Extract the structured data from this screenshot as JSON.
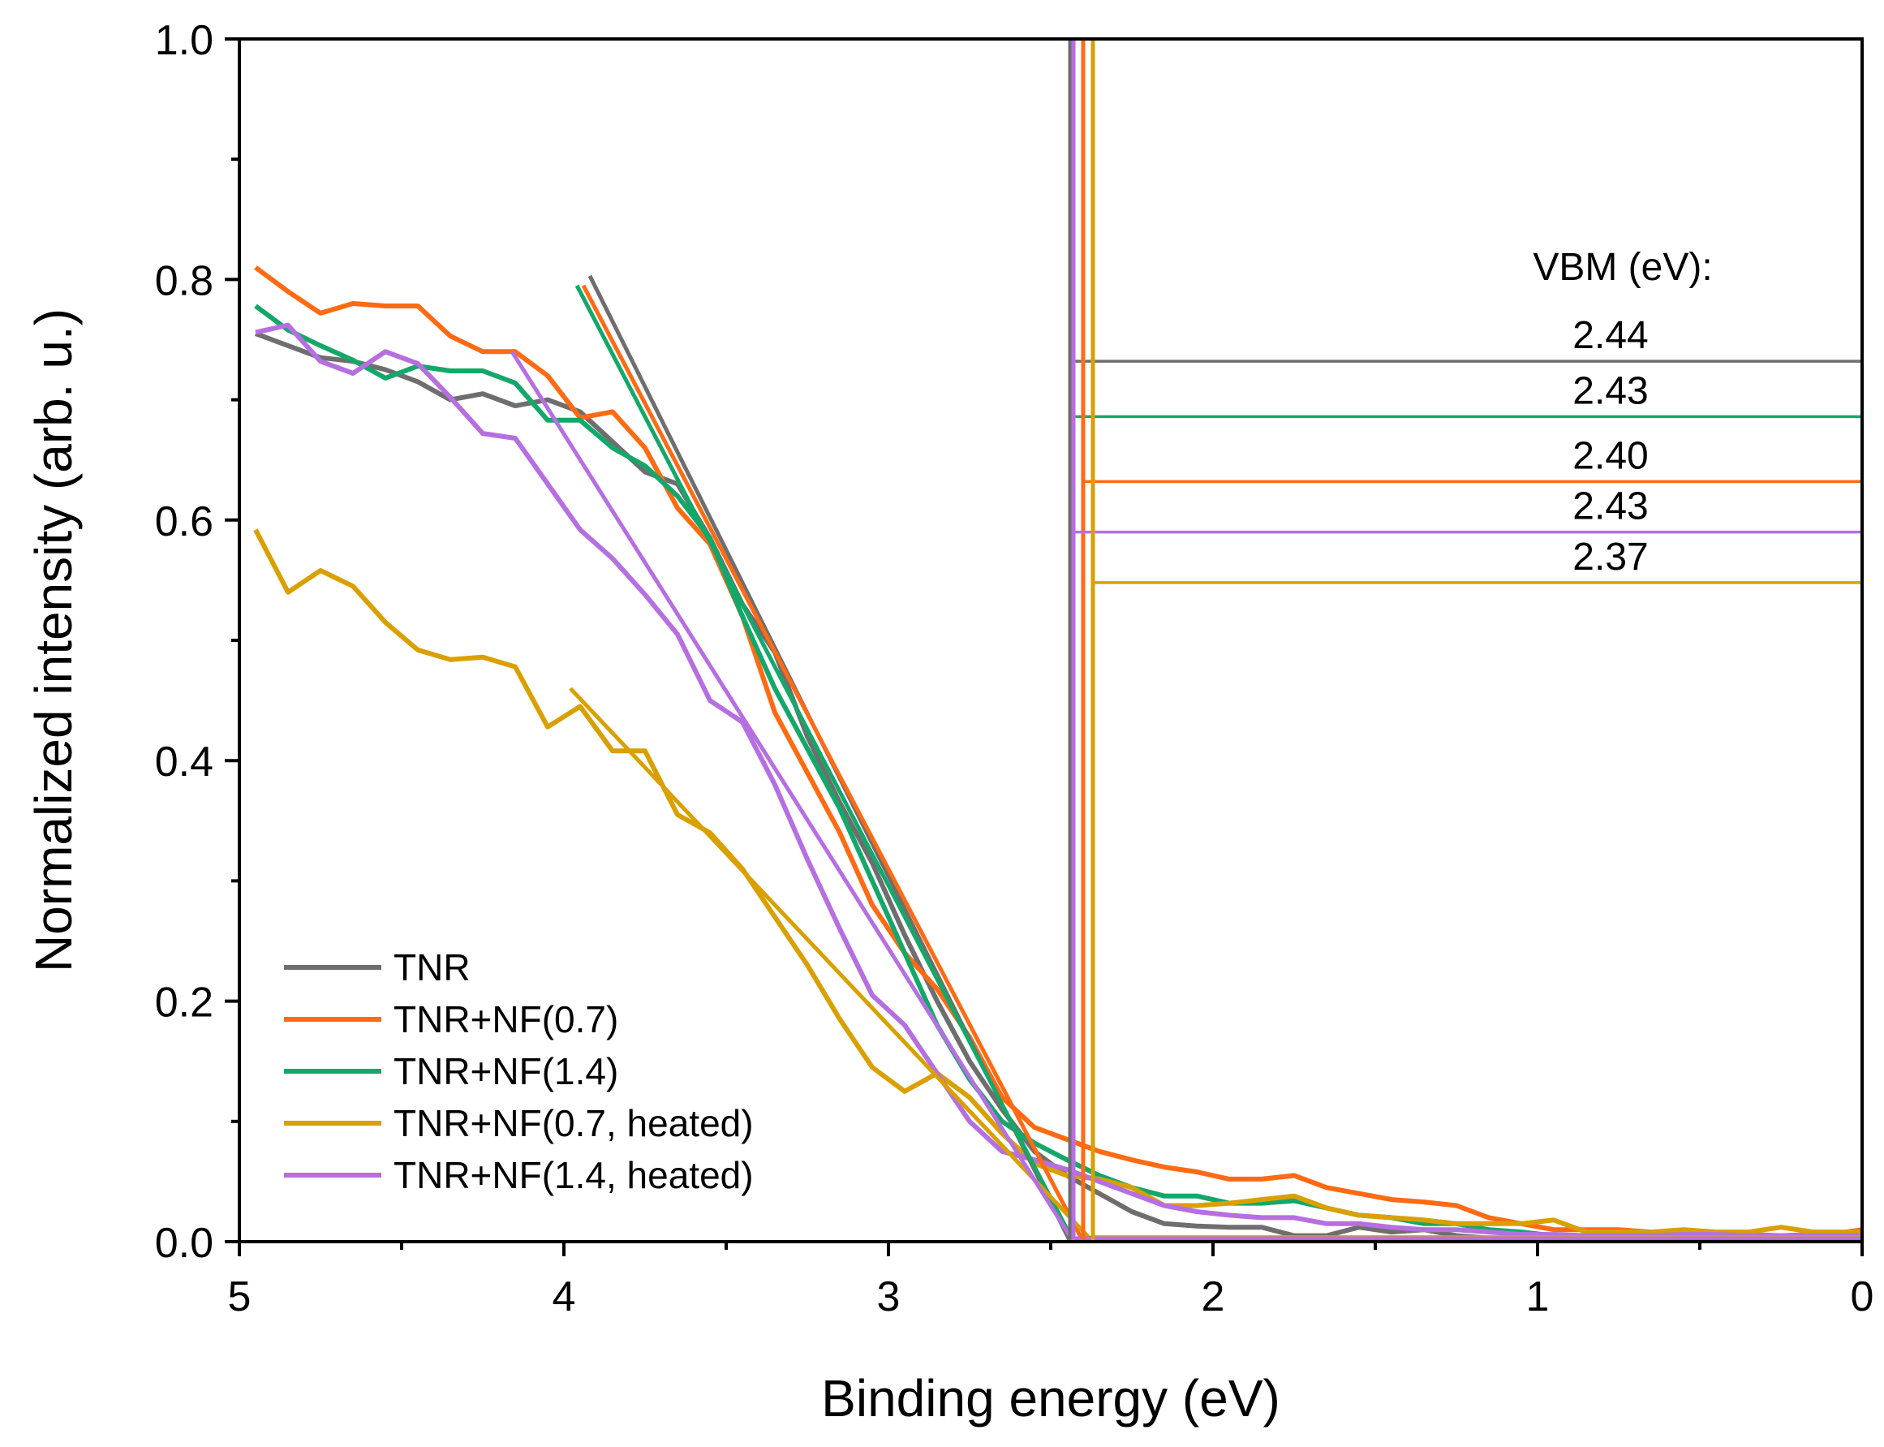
{
  "chart_data": {
    "type": "line",
    "xlabel": "Binding energy (eV)",
    "ylabel": "Normalized intensity (arb. u.)",
    "xlim": [
      5,
      0
    ],
    "ylim": [
      0,
      1.0
    ],
    "x_ticks": [
      5,
      4,
      3,
      2,
      1,
      0
    ],
    "x_tick_labels": [
      "5",
      "4",
      "3",
      "2",
      "1",
      "0"
    ],
    "y_ticks": [
      0,
      0.2,
      0.4,
      0.6,
      0.8,
      1.0
    ],
    "y_tick_labels": [
      "0.0",
      "0.2",
      "0.4",
      "0.6",
      "0.8",
      "1.0"
    ],
    "legend_position": "bottom-left",
    "series": [
      {
        "name": "TNR",
        "color": "#6e6e6e",
        "x": [
          4.95,
          4.85,
          4.75,
          4.65,
          4.55,
          4.45,
          4.35,
          4.25,
          4.15,
          4.05,
          3.95,
          3.85,
          3.75,
          3.65,
          3.55,
          3.45,
          3.35,
          3.25,
          3.15,
          3.05,
          2.95,
          2.85,
          2.75,
          2.65,
          2.55,
          2.45,
          2.35,
          2.25,
          2.15,
          2.05,
          1.95,
          1.85,
          1.75,
          1.65,
          1.55,
          1.45,
          1.35,
          1.25,
          1.15,
          1.05,
          0.95,
          0.85,
          0.75,
          0.65,
          0.55,
          0.45,
          0.35,
          0.25,
          0.15,
          0.05,
          0.0
        ],
        "y": [
          0.755,
          0.745,
          0.735,
          0.732,
          0.725,
          0.715,
          0.7,
          0.705,
          0.695,
          0.7,
          0.69,
          0.665,
          0.64,
          0.63,
          0.585,
          0.53,
          0.49,
          0.42,
          0.365,
          0.315,
          0.255,
          0.2,
          0.15,
          0.11,
          0.075,
          0.055,
          0.04,
          0.025,
          0.015,
          0.013,
          0.012,
          0.012,
          0.005,
          0.005,
          0.012,
          0.008,
          0.01,
          0.005,
          0.003,
          0.003,
          0.004,
          0.005,
          0.005,
          0.004,
          0.006,
          0.005,
          0.004,
          0.004,
          0.005,
          0.006,
          0.006
        ]
      },
      {
        "name": "TNR+NF(0.7)",
        "color": "#ff6a13",
        "x": [
          4.95,
          4.85,
          4.75,
          4.65,
          4.55,
          4.45,
          4.35,
          4.25,
          4.15,
          4.05,
          3.95,
          3.85,
          3.75,
          3.65,
          3.55,
          3.45,
          3.35,
          3.25,
          3.15,
          3.05,
          2.95,
          2.85,
          2.75,
          2.65,
          2.55,
          2.45,
          2.35,
          2.25,
          2.15,
          2.05,
          1.95,
          1.85,
          1.75,
          1.65,
          1.55,
          1.45,
          1.35,
          1.25,
          1.15,
          1.05,
          0.95,
          0.85,
          0.75,
          0.65,
          0.55,
          0.45,
          0.35,
          0.25,
          0.15,
          0.05,
          0.0
        ],
        "y": [
          0.81,
          0.79,
          0.772,
          0.78,
          0.778,
          0.778,
          0.753,
          0.74,
          0.74,
          0.72,
          0.685,
          0.69,
          0.66,
          0.61,
          0.58,
          0.52,
          0.44,
          0.39,
          0.34,
          0.28,
          0.24,
          0.21,
          0.17,
          0.12,
          0.095,
          0.085,
          0.075,
          0.068,
          0.062,
          0.058,
          0.052,
          0.052,
          0.055,
          0.045,
          0.04,
          0.035,
          0.033,
          0.03,
          0.02,
          0.015,
          0.01,
          0.01,
          0.01,
          0.008,
          0.008,
          0.006,
          0.006,
          0.005,
          0.006,
          0.008,
          0.01
        ]
      },
      {
        "name": "TNR+NF(1.4)",
        "color": "#13a86a",
        "x": [
          4.95,
          4.85,
          4.75,
          4.65,
          4.55,
          4.45,
          4.35,
          4.25,
          4.15,
          4.05,
          3.95,
          3.85,
          3.75,
          3.65,
          3.55,
          3.45,
          3.35,
          3.25,
          3.15,
          3.05,
          2.95,
          2.85,
          2.75,
          2.65,
          2.55,
          2.45,
          2.35,
          2.25,
          2.15,
          2.05,
          1.95,
          1.85,
          1.75,
          1.65,
          1.55,
          1.45,
          1.35,
          1.25,
          1.15,
          1.05,
          0.95,
          0.85,
          0.75,
          0.65,
          0.55,
          0.45,
          0.35,
          0.25,
          0.15,
          0.05,
          0.0
        ],
        "y": [
          0.778,
          0.758,
          0.745,
          0.733,
          0.718,
          0.728,
          0.724,
          0.724,
          0.714,
          0.683,
          0.683,
          0.66,
          0.645,
          0.62,
          0.585,
          0.52,
          0.46,
          0.41,
          0.36,
          0.3,
          0.24,
          0.18,
          0.135,
          0.1,
          0.082,
          0.068,
          0.055,
          0.045,
          0.038,
          0.038,
          0.032,
          0.032,
          0.034,
          0.028,
          0.022,
          0.02,
          0.015,
          0.015,
          0.01,
          0.008,
          0.005,
          0.005,
          0.005,
          0.005,
          0.004,
          0.004,
          0.004,
          0.004,
          0.004,
          0.004,
          0.004
        ]
      },
      {
        "name": "TNR+NF(0.7, heated)",
        "color": "#d9a000",
        "x": [
          4.95,
          4.85,
          4.75,
          4.65,
          4.55,
          4.45,
          4.35,
          4.25,
          4.15,
          4.05,
          3.95,
          3.85,
          3.75,
          3.65,
          3.55,
          3.45,
          3.35,
          3.25,
          3.15,
          3.05,
          2.95,
          2.85,
          2.75,
          2.65,
          2.55,
          2.45,
          2.35,
          2.25,
          2.15,
          2.05,
          1.95,
          1.85,
          1.75,
          1.65,
          1.55,
          1.45,
          1.35,
          1.25,
          1.15,
          1.05,
          0.95,
          0.85,
          0.75,
          0.65,
          0.55,
          0.45,
          0.35,
          0.25,
          0.15,
          0.05,
          0.0
        ],
        "y": [
          0.592,
          0.54,
          0.558,
          0.545,
          0.515,
          0.492,
          0.484,
          0.486,
          0.478,
          0.428,
          0.445,
          0.408,
          0.408,
          0.355,
          0.34,
          0.31,
          0.27,
          0.23,
          0.185,
          0.145,
          0.125,
          0.14,
          0.12,
          0.09,
          0.065,
          0.055,
          0.052,
          0.045,
          0.03,
          0.03,
          0.032,
          0.035,
          0.038,
          0.028,
          0.022,
          0.02,
          0.018,
          0.015,
          0.015,
          0.015,
          0.018,
          0.008,
          0.008,
          0.008,
          0.01,
          0.008,
          0.008,
          0.012,
          0.008,
          0.008,
          0.008
        ]
      },
      {
        "name": "TNR+NF(1.4, heated)",
        "color": "#b66fe0",
        "x": [
          4.95,
          4.85,
          4.75,
          4.65,
          4.55,
          4.45,
          4.35,
          4.25,
          4.15,
          4.05,
          3.95,
          3.85,
          3.75,
          3.65,
          3.55,
          3.45,
          3.35,
          3.25,
          3.15,
          3.05,
          2.95,
          2.85,
          2.75,
          2.65,
          2.55,
          2.45,
          2.35,
          2.25,
          2.15,
          2.05,
          1.95,
          1.85,
          1.75,
          1.65,
          1.55,
          1.45,
          1.35,
          1.25,
          1.15,
          1.05,
          0.95,
          0.85,
          0.75,
          0.65,
          0.55,
          0.45,
          0.35,
          0.25,
          0.15,
          0.05,
          0.0
        ],
        "y": [
          0.756,
          0.762,
          0.732,
          0.722,
          0.74,
          0.73,
          0.702,
          0.672,
          0.668,
          0.63,
          0.592,
          0.568,
          0.538,
          0.505,
          0.45,
          0.432,
          0.38,
          0.318,
          0.26,
          0.205,
          0.18,
          0.14,
          0.1,
          0.075,
          0.068,
          0.06,
          0.05,
          0.04,
          0.03,
          0.025,
          0.022,
          0.02,
          0.02,
          0.015,
          0.015,
          0.012,
          0.01,
          0.01,
          0.008,
          0.006,
          0.006,
          0.005,
          0.005,
          0.005,
          0.006,
          0.006,
          0.005,
          0.005,
          0.005,
          0.005,
          0.005
        ]
      }
    ],
    "fit_lines": [
      {
        "name": "TNR",
        "color": "#6e6e6e",
        "x": [
          3.92,
          2.44
        ],
        "y": [
          0.803,
          0.0
        ]
      },
      {
        "name": "TNR+NF(0.7)",
        "color": "#ff6a13",
        "x": [
          3.94,
          2.4
        ],
        "y": [
          0.795,
          0.0
        ]
      },
      {
        "name": "TNR+NF(1.4)",
        "color": "#13a86a",
        "x": [
          3.96,
          2.43
        ],
        "y": [
          0.795,
          0.0
        ]
      },
      {
        "name": "TNR+NF(0.7, heated)",
        "color": "#d9a000",
        "x": [
          3.98,
          2.37
        ],
        "y": [
          0.46,
          0.0
        ]
      },
      {
        "name": "TNR+NF(1.4, heated)",
        "color": "#b66fe0",
        "x": [
          4.16,
          2.43
        ],
        "y": [
          0.74,
          0.0
        ]
      }
    ],
    "baseline_fits": [
      {
        "name": "TNR",
        "color": "#6e6e6e",
        "x": [
          2.44,
          0.0
        ],
        "y": [
          0.0025,
          0.0025
        ]
      },
      {
        "name": "TNR+NF(0.7)",
        "color": "#ff6a13",
        "x": [
          2.4,
          0.0
        ],
        "y": [
          0.0035,
          0.0035
        ]
      },
      {
        "name": "TNR+NF(1.4)",
        "color": "#13a86a",
        "x": [
          2.43,
          0.0
        ],
        "y": [
          0.002,
          0.002
        ]
      },
      {
        "name": "TNR+NF(0.7, heated)",
        "color": "#d9a000",
        "x": [
          2.37,
          0.0
        ],
        "y": [
          0.004,
          0.004
        ]
      },
      {
        "name": "TNR+NF(1.4, heated)",
        "color": "#b66fe0",
        "x": [
          2.43,
          0.0
        ],
        "y": [
          0.003,
          0.003
        ]
      }
    ],
    "vbm_markers": [
      {
        "name": "TNR",
        "color": "#6e6e6e",
        "x": 2.44,
        "y": 0.732
      },
      {
        "name": "TNR+NF(1.4)",
        "color": "#13a86a",
        "x": 2.43,
        "y": 0.686
      },
      {
        "name": "TNR+NF(0.7)",
        "color": "#ff6a13",
        "x": 2.4,
        "y": 0.632
      },
      {
        "name": "TNR+NF(1.4, heated)",
        "color": "#b66fe0",
        "x": 2.43,
        "y": 0.59
      },
      {
        "name": "TNR+NF(0.7, heated)",
        "color": "#d9a000",
        "x": 2.37,
        "y": 0.548
      }
    ],
    "vbm_title": "VBM (eV):",
    "vbm_values": [
      "2.44",
      "2.43",
      "2.40",
      "2.43",
      "2.37"
    ]
  }
}
